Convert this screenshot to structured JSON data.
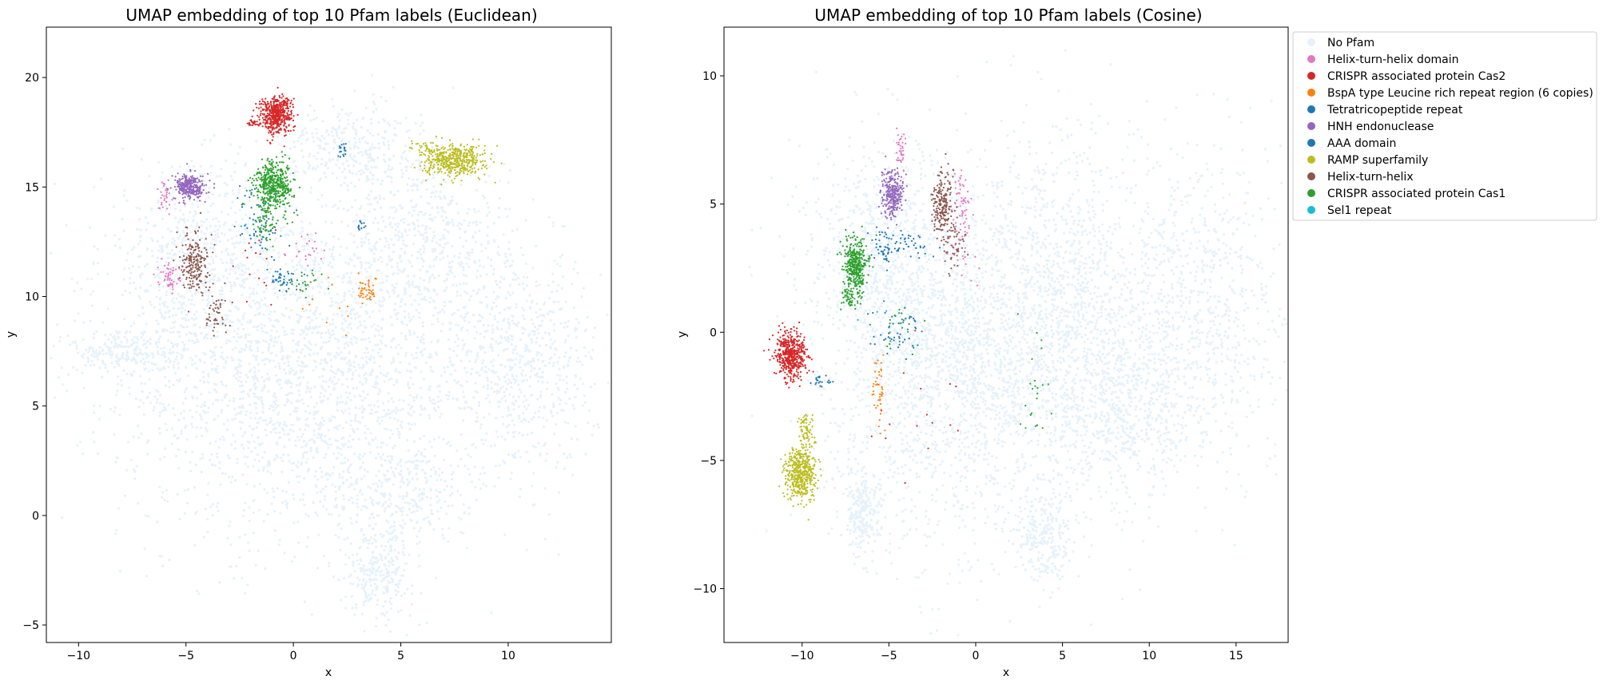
{
  "chart_data": [
    {
      "type": "scatter",
      "title": "UMAP embedding of top 10 Pfam labels (Euclidean)",
      "xlabel": "x",
      "ylabel": "y",
      "xlim": [
        -11.5,
        14.8
      ],
      "ylim": [
        -5.8,
        22.3
      ],
      "xticks": [
        -10,
        -5,
        0,
        5,
        10
      ],
      "yticks": [
        -5,
        0,
        5,
        10,
        15,
        20
      ],
      "grid": false,
      "series": [
        {
          "name": "No Pfam",
          "color": "#e6f2fb",
          "background": true,
          "points": 5200,
          "blobs": [
            {
              "cx": 0.5,
              "cy": 6.5,
              "sx": 4.2,
              "sy": 3.8,
              "w": 0.45
            },
            {
              "cx": -4.5,
              "cy": 11.5,
              "sx": 2.2,
              "sy": 2.2,
              "w": 0.12
            },
            {
              "cx": 10.5,
              "cy": 7.0,
              "sx": 1.8,
              "sy": 2.5,
              "w": 0.13
            },
            {
              "cx": 6.0,
              "cy": 12.5,
              "sx": 2.0,
              "sy": 2.0,
              "w": 0.1
            },
            {
              "cx": 4.0,
              "cy": -2.5,
              "sx": 0.8,
              "sy": 1.0,
              "w": 0.05
            },
            {
              "cx": 2.5,
              "cy": 16.8,
              "sx": 1.6,
              "sy": 1.0,
              "w": 0.06
            },
            {
              "cx": -8.0,
              "cy": 7.5,
              "sx": 1.2,
              "sy": 0.6,
              "w": 0.04
            },
            {
              "cx": 5.0,
              "cy": 1.0,
              "sx": 1.6,
              "sy": 1.2,
              "w": 0.05
            }
          ]
        },
        {
          "name": "Helix-turn-helix domain",
          "color": "#e377c2",
          "points": 110,
          "blobs": [
            {
              "cx": -5.8,
              "cy": 11.0,
              "sx": 0.25,
              "sy": 0.3,
              "w": 0.5
            },
            {
              "cx": -6.0,
              "cy": 14.5,
              "sx": 0.15,
              "sy": 0.35,
              "w": 0.3
            },
            {
              "cx": 0.5,
              "cy": 12.5,
              "sx": 0.5,
              "sy": 0.5,
              "w": 0.2
            }
          ]
        },
        {
          "name": "CRISPR associated protein Cas2",
          "color": "#d62728",
          "points": 560,
          "blobs": [
            {
              "cx": -0.8,
              "cy": 18.3,
              "sx": 0.38,
              "sy": 0.42,
              "w": 0.92
            },
            {
              "cx": -1.8,
              "cy": 17.9,
              "sx": 0.15,
              "sy": 0.1,
              "w": 0.05
            },
            {
              "cx": -2.0,
              "cy": 11.5,
              "sx": 0.5,
              "sy": 1.0,
              "w": 0.03
            }
          ]
        },
        {
          "name": "BspA type Leucine rich repeat region (6 copies)",
          "color": "#ff7f0e",
          "points": 55,
          "blobs": [
            {
              "cx": 3.4,
              "cy": 10.3,
              "sx": 0.25,
              "sy": 0.3,
              "w": 0.8
            },
            {
              "cx": 2.0,
              "cy": 10.0,
              "sx": 0.8,
              "sy": 0.8,
              "w": 0.2
            }
          ]
        },
        {
          "name": "Tetratricopeptide repeat",
          "color": "#1f77b4",
          "points": 60,
          "blobs": [
            {
              "cx": 2.3,
              "cy": 16.6,
              "sx": 0.12,
              "sy": 0.25,
              "w": 0.3
            },
            {
              "cx": 3.2,
              "cy": 13.3,
              "sx": 0.1,
              "sy": 0.2,
              "w": 0.2
            },
            {
              "cx": -1.5,
              "cy": 13.0,
              "sx": 0.6,
              "sy": 0.8,
              "w": 0.5
            }
          ]
        },
        {
          "name": "HNH endonuclease",
          "color": "#9467bd",
          "points": 300,
          "blobs": [
            {
              "cx": -4.8,
              "cy": 15.0,
              "sx": 0.35,
              "sy": 0.28,
              "w": 1.0
            }
          ]
        },
        {
          "name": "AAA domain",
          "color": "#1f77b4",
          "points": 70,
          "blobs": [
            {
              "cx": -0.6,
              "cy": 10.8,
              "sx": 0.35,
              "sy": 0.3,
              "w": 0.6
            },
            {
              "cx": -1.5,
              "cy": 14.0,
              "sx": 0.5,
              "sy": 0.8,
              "w": 0.4
            }
          ]
        },
        {
          "name": "RAMP superfamily",
          "color": "#bcbd22",
          "points": 520,
          "blobs": [
            {
              "cx": 7.5,
              "cy": 16.2,
              "sx": 0.7,
              "sy": 0.35,
              "w": 0.95
            },
            {
              "cx": 6.0,
              "cy": 16.8,
              "sx": 0.3,
              "sy": 0.15,
              "w": 0.05
            }
          ]
        },
        {
          "name": "Helix-turn-helix",
          "color": "#8c564b",
          "points": 260,
          "blobs": [
            {
              "cx": -4.6,
              "cy": 11.6,
              "sx": 0.3,
              "sy": 0.7,
              "w": 0.8
            },
            {
              "cx": -3.6,
              "cy": 9.3,
              "sx": 0.3,
              "sy": 0.5,
              "w": 0.2
            }
          ]
        },
        {
          "name": "CRISPR associated protein Cas1",
          "color": "#2ca02c",
          "points": 560,
          "blobs": [
            {
              "cx": -0.9,
              "cy": 15.1,
              "sx": 0.45,
              "sy": 0.55,
              "w": 0.85
            },
            {
              "cx": -1.2,
              "cy": 13.3,
              "sx": 0.3,
              "sy": 0.4,
              "w": 0.1
            },
            {
              "cx": 0.5,
              "cy": 10.5,
              "sx": 0.4,
              "sy": 0.4,
              "w": 0.05
            }
          ]
        },
        {
          "name": "Sel1 repeat",
          "color": "#17becf",
          "points": 4,
          "blobs": [
            {
              "cx": -2.0,
              "cy": 13.0,
              "sx": 0.3,
              "sy": 0.3,
              "w": 1.0
            }
          ]
        }
      ]
    },
    {
      "type": "scatter",
      "title": "UMAP embedding of top 10 Pfam labels (Cosine)",
      "xlabel": "x",
      "ylabel": "y",
      "xlim": [
        -14.5,
        18.0
      ],
      "ylim": [
        -12.1,
        11.9
      ],
      "xticks": [
        -10,
        -5,
        0,
        5,
        10,
        15
      ],
      "yticks": [
        -10,
        -5,
        0,
        5,
        10
      ],
      "grid": false,
      "legend": "right outside, upper",
      "series": [
        {
          "name": "No Pfam",
          "color": "#e6f2fb",
          "background": true,
          "points": 5600,
          "blobs": [
            {
              "cx": -1.0,
              "cy": -1.0,
              "sx": 3.8,
              "sy": 3.5,
              "w": 0.4
            },
            {
              "cx": 5.5,
              "cy": 0.5,
              "sx": 2.5,
              "sy": 3.5,
              "w": 0.2
            },
            {
              "cx": 13.0,
              "cy": 1.0,
              "sx": 2.5,
              "sy": 3.0,
              "w": 0.14
            },
            {
              "cx": 9.0,
              "cy": -3.0,
              "sx": 1.8,
              "sy": 1.8,
              "w": 0.08
            },
            {
              "cx": -5.5,
              "cy": 3.0,
              "sx": 2.0,
              "sy": 2.2,
              "w": 0.1
            },
            {
              "cx": 4.0,
              "cy": -8.0,
              "sx": 0.8,
              "sy": 1.0,
              "w": 0.04
            },
            {
              "cx": -6.5,
              "cy": -7.0,
              "sx": 0.6,
              "sy": 0.8,
              "w": 0.04
            }
          ]
        },
        {
          "name": "Helix-turn-helix domain",
          "color": "#e377c2",
          "points": 120,
          "blobs": [
            {
              "cx": -0.8,
              "cy": 5.0,
              "sx": 0.25,
              "sy": 0.6,
              "w": 0.5
            },
            {
              "cx": -4.3,
              "cy": 7.1,
              "sx": 0.15,
              "sy": 0.4,
              "w": 0.3
            },
            {
              "cx": -1.0,
              "cy": 3.0,
              "sx": 0.5,
              "sy": 0.6,
              "w": 0.2
            }
          ]
        },
        {
          "name": "CRISPR associated protein Cas2",
          "color": "#d62728",
          "points": 520,
          "blobs": [
            {
              "cx": -10.6,
              "cy": -0.9,
              "sx": 0.45,
              "sy": 0.45,
              "w": 0.97
            },
            {
              "cx": -3.0,
              "cy": -3.0,
              "sx": 1.5,
              "sy": 1.0,
              "w": 0.03
            }
          ]
        },
        {
          "name": "BspA type Leucine rich repeat region (6 copies)",
          "color": "#ff7f0e",
          "points": 45,
          "blobs": [
            {
              "cx": -5.6,
              "cy": -2.2,
              "sx": 0.15,
              "sy": 0.6,
              "w": 1.0
            }
          ]
        },
        {
          "name": "Tetratricopeptide repeat",
          "color": "#1f77b4",
          "points": 70,
          "blobs": [
            {
              "cx": -9.0,
              "cy": -1.9,
              "sx": 0.3,
              "sy": 0.1,
              "w": 0.3
            },
            {
              "cx": -4.5,
              "cy": 0.0,
              "sx": 0.8,
              "sy": 0.4,
              "w": 0.7
            }
          ]
        },
        {
          "name": "HNH endonuclease",
          "color": "#9467bd",
          "points": 290,
          "blobs": [
            {
              "cx": -4.8,
              "cy": 5.4,
              "sx": 0.3,
              "sy": 0.45,
              "w": 1.0
            }
          ]
        },
        {
          "name": "AAA domain",
          "color": "#1f77b4",
          "points": 90,
          "blobs": [
            {
              "cx": -5.2,
              "cy": 3.3,
              "sx": 0.4,
              "sy": 0.35,
              "w": 0.7
            },
            {
              "cx": -3.5,
              "cy": 3.4,
              "sx": 0.5,
              "sy": 0.3,
              "w": 0.3
            }
          ]
        },
        {
          "name": "RAMP superfamily",
          "color": "#bcbd22",
          "points": 560,
          "blobs": [
            {
              "cx": -10.1,
              "cy": -5.5,
              "sx": 0.45,
              "sy": 0.5,
              "w": 0.85
            },
            {
              "cx": -9.8,
              "cy": -3.9,
              "sx": 0.25,
              "sy": 0.4,
              "w": 0.15
            }
          ]
        },
        {
          "name": "Helix-turn-helix",
          "color": "#8c564b",
          "points": 260,
          "blobs": [
            {
              "cx": -1.9,
              "cy": 5.0,
              "sx": 0.3,
              "sy": 0.65,
              "w": 0.8
            },
            {
              "cx": -1.2,
              "cy": 3.5,
              "sx": 0.3,
              "sy": 0.5,
              "w": 0.2
            }
          ]
        },
        {
          "name": "CRISPR associated protein Cas1",
          "color": "#2ca02c",
          "points": 480,
          "blobs": [
            {
              "cx": -6.9,
              "cy": 2.6,
              "sx": 0.35,
              "sy": 0.5,
              "w": 0.8
            },
            {
              "cx": -7.3,
              "cy": 1.3,
              "sx": 0.25,
              "sy": 0.2,
              "w": 0.1
            },
            {
              "cx": -4.5,
              "cy": 0.0,
              "sx": 0.7,
              "sy": 0.5,
              "w": 0.05
            },
            {
              "cx": 3.5,
              "cy": -2.5,
              "sx": 0.5,
              "sy": 1.2,
              "w": 0.05
            }
          ]
        },
        {
          "name": "Sel1 repeat",
          "color": "#17becf",
          "points": 3,
          "blobs": [
            {
              "cx": -6.0,
              "cy": 1.0,
              "sx": 0.5,
              "sy": 0.5,
              "w": 1.0
            }
          ]
        }
      ]
    }
  ]
}
